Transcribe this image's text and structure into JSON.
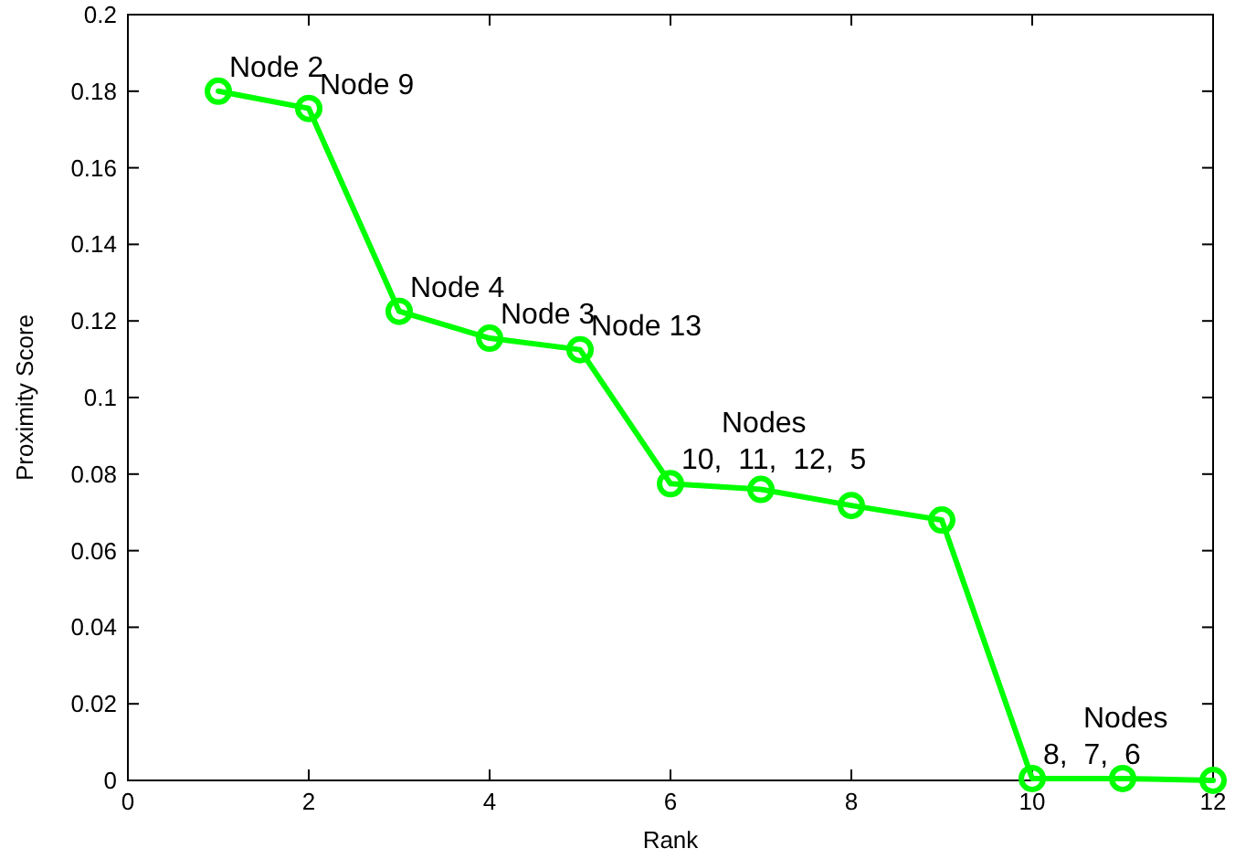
{
  "chart_data": {
    "type": "line",
    "xlabel": "Rank",
    "ylabel": "Proximity Score",
    "x": [
      1,
      2,
      3,
      4,
      5,
      6,
      7,
      8,
      9,
      10,
      11,
      12
    ],
    "series": [
      {
        "color": "#00ff00",
        "values": [
          0.18,
          0.1755,
          0.1225,
          0.1155,
          0.1125,
          0.0775,
          0.076,
          0.0718,
          0.068,
          0.0005,
          0.0005,
          0.0
        ]
      }
    ],
    "marker": "circle",
    "line_style": "solid",
    "xlim": [
      0,
      12
    ],
    "xticks": [
      0,
      2,
      4,
      6,
      8,
      10,
      12
    ],
    "ylim": [
      0,
      0.2
    ],
    "yticks": [
      0,
      0.02,
      0.04,
      0.06,
      0.08,
      0.1,
      0.12,
      0.14,
      0.16,
      0.18,
      0.2
    ],
    "annotations": [
      {
        "text": "Node 2",
        "x": 1,
        "y": 0.18
      },
      {
        "text": "Node 9",
        "x": 2,
        "y": 0.1755
      },
      {
        "text": "Node 4",
        "x": 3,
        "y": 0.1225
      },
      {
        "text": "Node 3",
        "x": 4,
        "y": 0.1155
      },
      {
        "text": "Node 13",
        "x": 5,
        "y": 0.1125
      },
      {
        "text": "Nodes\n10,  11,  12,  5",
        "x": 6,
        "y": 0.0775
      },
      {
        "text": "Nodes\n8,  7,  6",
        "x": 10,
        "y": 0.0005
      }
    ]
  }
}
